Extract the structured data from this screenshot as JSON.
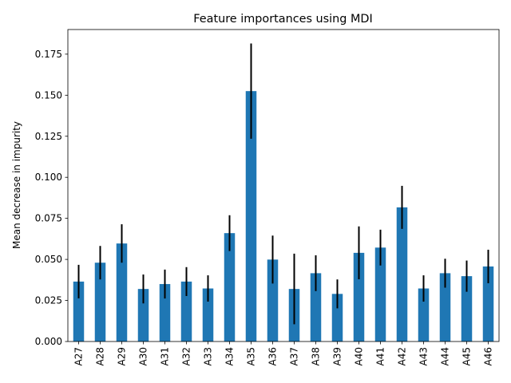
{
  "chart_data": {
    "type": "bar",
    "title": "Feature importances using MDI",
    "xlabel": "",
    "ylabel": "Mean decrease in impurity",
    "categories": [
      "A27",
      "A28",
      "A29",
      "A30",
      "A31",
      "A32",
      "A33",
      "A34",
      "A35",
      "A36",
      "A37",
      "A38",
      "A39",
      "A40",
      "A41",
      "A42",
      "A43",
      "A44",
      "A45",
      "A46"
    ],
    "values": [
      0.0365,
      0.048,
      0.0597,
      0.032,
      0.035,
      0.0365,
      0.0323,
      0.066,
      0.1525,
      0.0499,
      0.032,
      0.0416,
      0.029,
      0.054,
      0.0572,
      0.0817,
      0.0323,
      0.0416,
      0.0398,
      0.0457
    ],
    "errors": [
      0.0102,
      0.0102,
      0.0117,
      0.0088,
      0.0088,
      0.0088,
      0.008,
      0.0109,
      0.029,
      0.0146,
      0.0215,
      0.0109,
      0.0088,
      0.0161,
      0.0109,
      0.0131,
      0.008,
      0.0088,
      0.0095,
      0.0102
    ],
    "ylim": [
      0,
      0.19
    ],
    "yticks": [
      "0.000",
      "0.025",
      "0.050",
      "0.075",
      "0.100",
      "0.125",
      "0.150",
      "0.175"
    ],
    "bar_color": "#1f77b4",
    "error_color": "#000000",
    "grid": false,
    "legend": "none"
  }
}
